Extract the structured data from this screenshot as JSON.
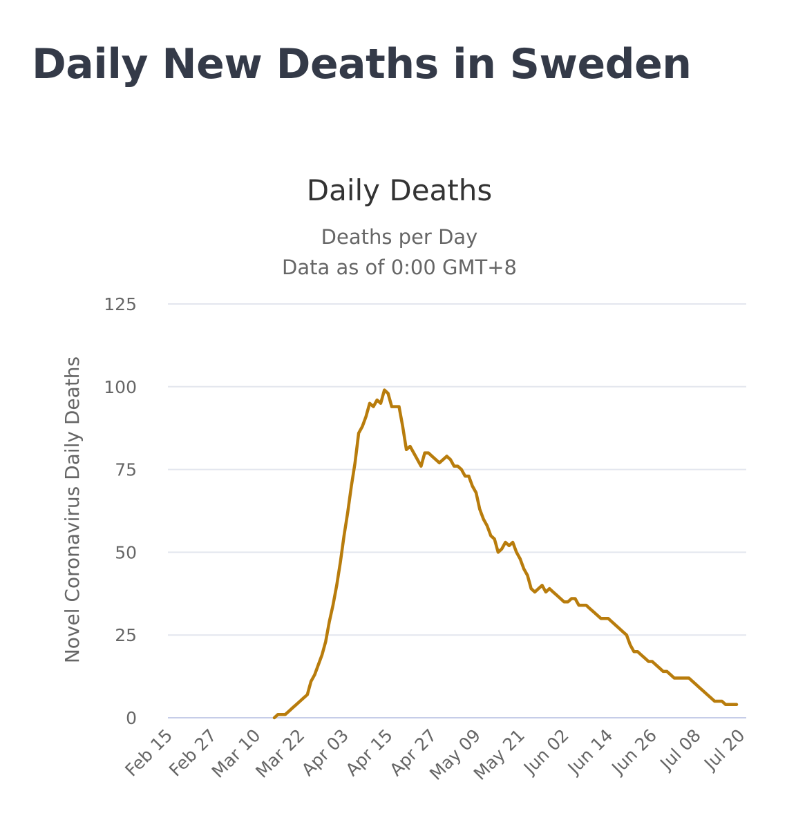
{
  "page": {
    "title": "Daily New Deaths in Sweden"
  },
  "colors": {
    "line": "#b87c0c",
    "title": "#343a48",
    "grid": "#e3e6ee"
  },
  "chart_data": {
    "type": "line",
    "title": "Daily Deaths",
    "subtitle_line1": "Deaths per Day",
    "subtitle_line2": "Data as of 0:00 GMT+8",
    "ylabel": "Novel Coronavirus Daily Deaths",
    "xlabel": "",
    "ylim": [
      0,
      125
    ],
    "yticks": [
      0,
      25,
      50,
      75,
      100,
      125
    ],
    "xlim": [
      0,
      161
    ],
    "grid": true,
    "legend": "none",
    "xticks": [
      {
        "label": "Feb 15",
        "day": 0
      },
      {
        "label": "Feb 27",
        "day": 12
      },
      {
        "label": "Mar 10",
        "day": 24
      },
      {
        "label": "Mar 22",
        "day": 36
      },
      {
        "label": "Apr 03",
        "day": 48
      },
      {
        "label": "Apr 15",
        "day": 60
      },
      {
        "label": "Apr 27",
        "day": 72
      },
      {
        "label": "May 09",
        "day": 84
      },
      {
        "label": "May 21",
        "day": 96
      },
      {
        "label": "Jun 02",
        "day": 108
      },
      {
        "label": "Jun 14",
        "day": 120
      },
      {
        "label": "Jun 26",
        "day": 132
      },
      {
        "label": "Jul 08",
        "day": 144
      },
      {
        "label": "Jul 20",
        "day": 156
      }
    ],
    "series": [
      {
        "name": "Daily Deaths",
        "start_day": 29,
        "values": [
          0,
          1,
          1,
          1,
          2,
          3,
          4,
          5,
          6,
          7,
          11,
          13,
          16,
          19,
          23,
          29,
          34,
          40,
          47,
          55,
          62,
          70,
          77,
          86,
          88,
          91,
          95,
          94,
          96,
          95,
          99,
          98,
          94,
          94,
          94,
          88,
          81,
          82,
          80,
          78,
          76,
          80,
          80,
          79,
          78,
          77,
          78,
          79,
          78,
          76,
          76,
          75,
          73,
          73,
          70,
          68,
          63,
          60,
          58,
          55,
          54,
          50,
          51,
          53,
          52,
          53,
          50,
          48,
          45,
          43,
          39,
          38,
          39,
          40,
          38,
          39,
          38,
          37,
          36,
          35,
          35,
          36,
          36,
          34,
          34,
          34,
          33,
          32,
          31,
          30,
          30,
          30,
          29,
          28,
          27,
          26,
          25,
          22,
          20,
          20,
          19,
          18,
          17,
          17,
          16,
          15,
          14,
          14,
          13,
          12,
          12,
          12,
          12,
          12,
          11,
          10,
          9,
          8,
          7,
          6,
          5,
          5,
          5,
          4,
          4,
          4,
          4
        ]
      }
    ]
  }
}
